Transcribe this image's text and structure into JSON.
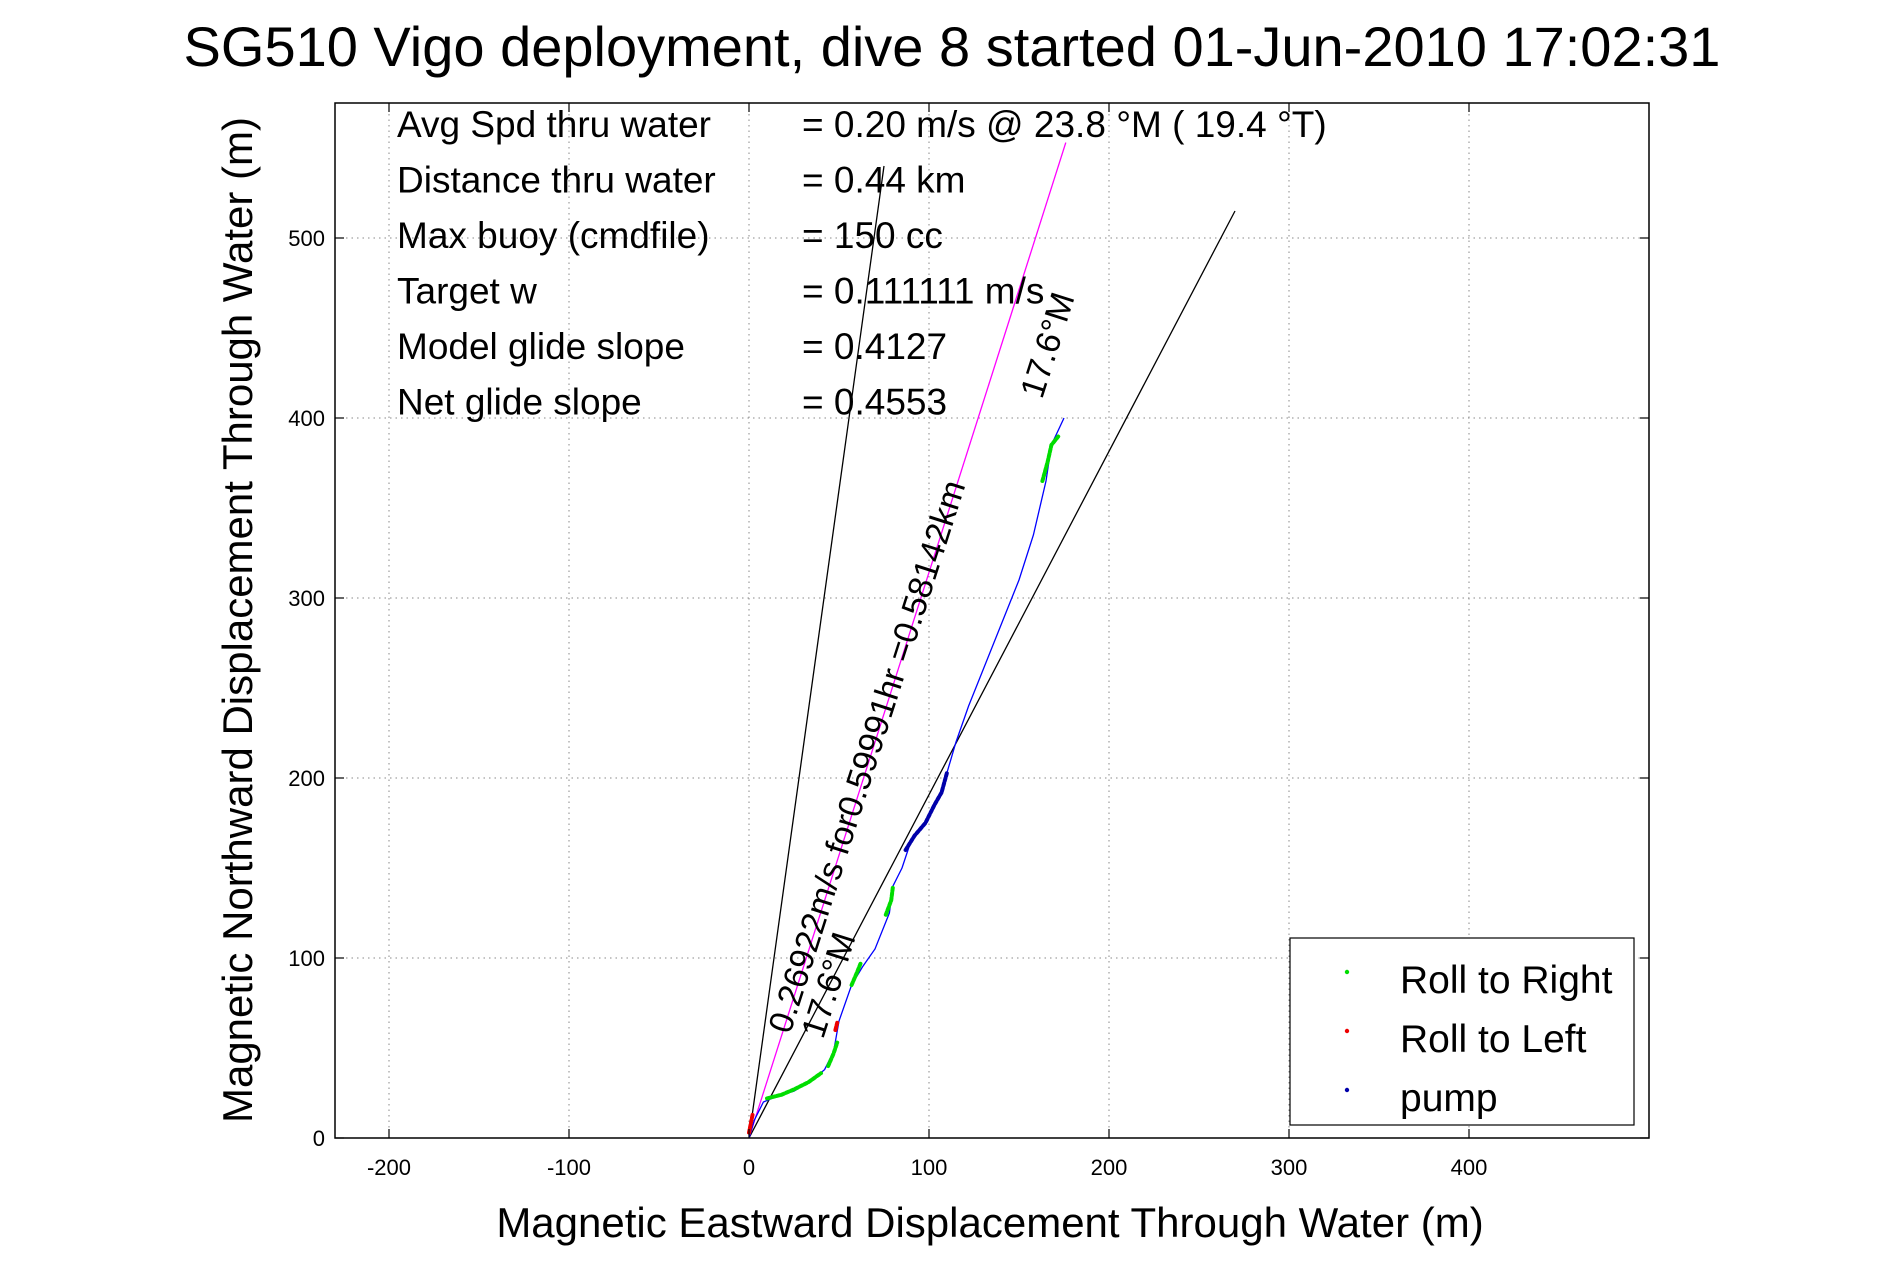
{
  "chart_data": {
    "type": "line",
    "title": "SG510 Vigo deployment, dive 8 started 01-Jun-2010 17:02:31",
    "xlabel": "Magnetic Eastward Displacement Through Water (m)",
    "ylabel": "Magnetic Northward Displacement Through Water (m)",
    "xlim": [
      -230,
      500
    ],
    "ylim": [
      0,
      575
    ],
    "xticks": [
      -200,
      -100,
      0,
      100,
      200,
      300,
      400
    ],
    "yticks": [
      0,
      100,
      200,
      300,
      400,
      500
    ],
    "xtick_labels": [
      "-200",
      "-100",
      "0",
      "100",
      "200",
      "300",
      "400"
    ],
    "ytick_labels": [
      "0",
      "100",
      "200",
      "300",
      "400",
      "500"
    ],
    "grid": true,
    "info_lines": [
      {
        "label": "Avg Spd thru water",
        "value": "=  0.20 m/s @  23.8 °M ( 19.4 °T)"
      },
      {
        "label": "Distance thru water",
        "value": "=  0.44 km"
      },
      {
        "label": "Max buoy (cmdfile)",
        "value": "= 150 cc"
      },
      {
        "label": "Target w",
        "value": "= 0.111111 m/s"
      },
      {
        "label": "Model glide slope",
        "value": "= 0.4127"
      },
      {
        "label": "Net glide slope",
        "value": "= 0.4553"
      }
    ],
    "annotations": {
      "vector_label": "0.26922m/s for0.59991hr =0.58142km",
      "heading_label_low": "17.6°M",
      "heading_label_high": "17.6°M"
    },
    "lines": [
      {
        "id": "thin-left",
        "color": "#000000",
        "points": [
          [
            0,
            0
          ],
          [
            75,
            540
          ]
        ]
      },
      {
        "id": "thin-right",
        "color": "#000000",
        "points": [
          [
            0,
            0
          ],
          [
            270,
            515
          ]
        ]
      },
      {
        "id": "current-vector",
        "color": "#ff00ff",
        "points": [
          [
            0,
            0
          ],
          [
            176,
            553
          ]
        ]
      }
    ],
    "track": {
      "color": "#0000ff",
      "points": [
        [
          0,
          0
        ],
        [
          3,
          10
        ],
        [
          8,
          20
        ],
        [
          15,
          23
        ],
        [
          25,
          26
        ],
        [
          35,
          32
        ],
        [
          42,
          38
        ],
        [
          47,
          48
        ],
        [
          50,
          65
        ],
        [
          57,
          85
        ],
        [
          63,
          95
        ],
        [
          70,
          105
        ],
        [
          78,
          125
        ],
        [
          80,
          140
        ],
        [
          85,
          150
        ],
        [
          90,
          165
        ],
        [
          98,
          175
        ],
        [
          105,
          188
        ],
        [
          110,
          203
        ],
        [
          115,
          220
        ],
        [
          122,
          240
        ],
        [
          130,
          260
        ],
        [
          140,
          285
        ],
        [
          150,
          310
        ],
        [
          158,
          335
        ],
        [
          165,
          365
        ],
        [
          168,
          385
        ],
        [
          175,
          400
        ]
      ]
    },
    "series": [
      {
        "name": "Roll to Right",
        "color": "#00dd00",
        "segments": [
          [
            [
              10,
              22
            ],
            [
              18,
              24
            ],
            [
              25,
              27
            ],
            [
              33,
              31
            ],
            [
              40,
              36
            ]
          ],
          [
            [
              44,
              40
            ],
            [
              47,
              47
            ],
            [
              49,
              53
            ]
          ],
          [
            [
              57,
              85
            ],
            [
              60,
              92
            ],
            [
              62,
              97
            ]
          ],
          [
            [
              76,
              124
            ],
            [
              79,
              132
            ],
            [
              80,
              140
            ]
          ],
          [
            [
              163,
              365
            ],
            [
              166,
              376
            ],
            [
              168,
              385
            ],
            [
              172,
              390
            ]
          ]
        ]
      },
      {
        "name": "Roll to Left",
        "color": "#ee0000",
        "segments": [
          [
            [
              0,
              3
            ],
            [
              1,
              8
            ],
            [
              2,
              13
            ]
          ],
          [
            [
              48,
              60
            ],
            [
              49,
              64
            ]
          ]
        ]
      },
      {
        "name": "pump",
        "color": "#0000aa",
        "segments": [
          [
            [
              87,
              160
            ],
            [
              92,
              168
            ],
            [
              98,
              175
            ],
            [
              103,
              185
            ],
            [
              107,
              192
            ],
            [
              110,
              203
            ]
          ]
        ]
      }
    ],
    "legend": {
      "placement": "bottom-right",
      "entries": [
        "Roll to Right",
        "Roll to Left",
        "pump"
      ]
    }
  }
}
